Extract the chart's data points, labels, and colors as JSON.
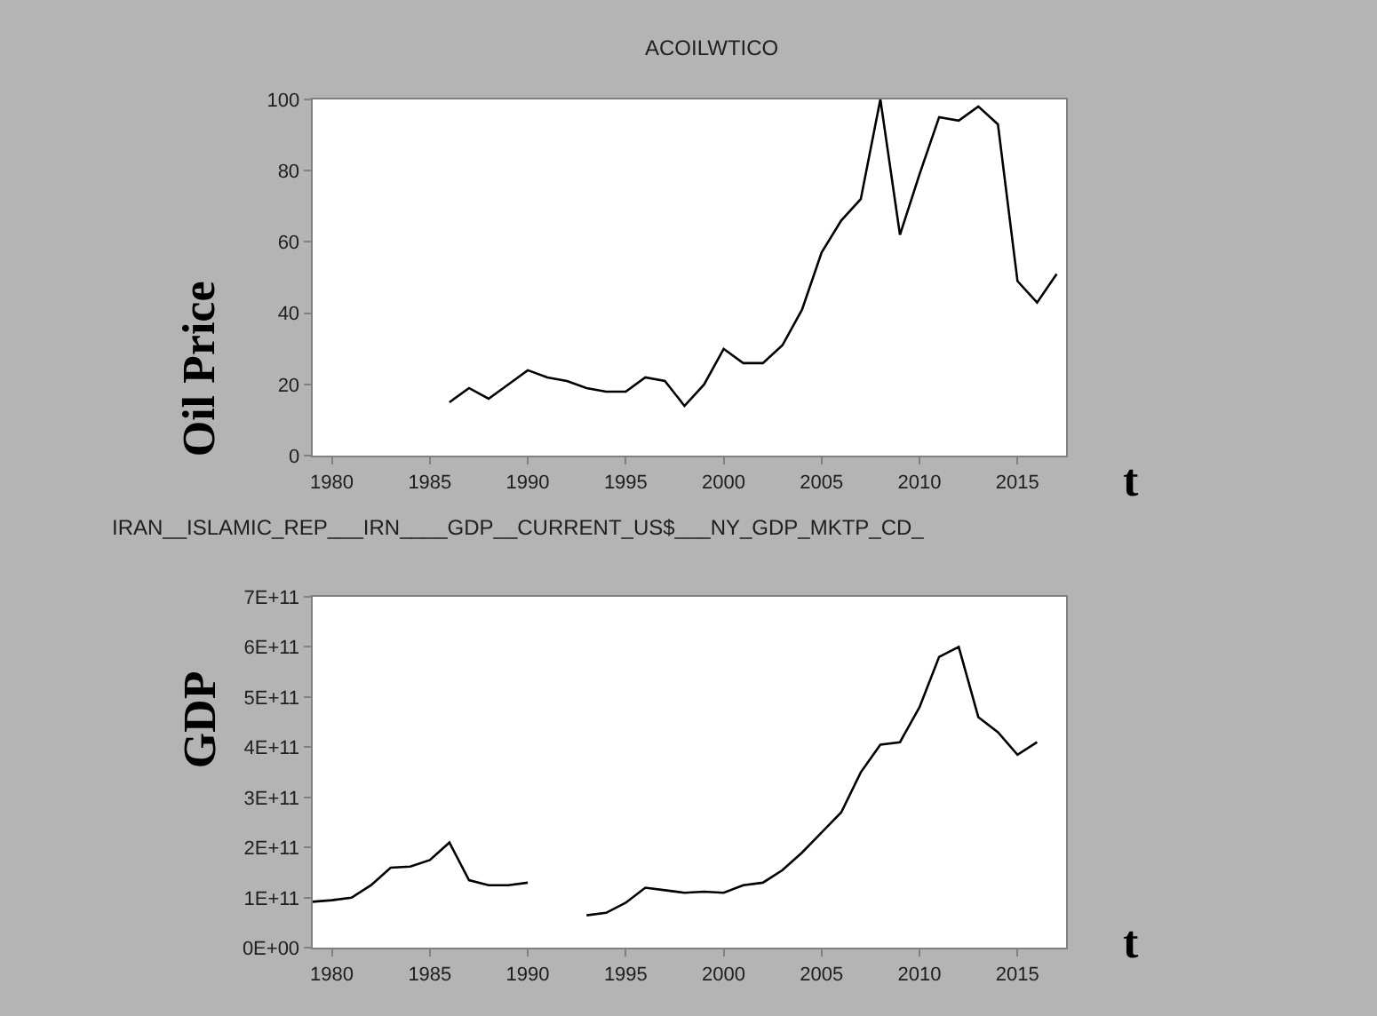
{
  "chart_data": [
    {
      "type": "line",
      "title": "ACOILWTICO",
      "xlabel": "t",
      "ylabel": "Oil Price",
      "color": "#000000",
      "x": [
        1986,
        1987,
        1988,
        1989,
        1990,
        1991,
        1992,
        1993,
        1994,
        1995,
        1996,
        1997,
        1998,
        1999,
        2000,
        2001,
        2002,
        2003,
        2004,
        2005,
        2006,
        2007,
        2008,
        2009,
        2010,
        2011,
        2012,
        2013,
        2014,
        2015,
        2016,
        2017
      ],
      "values": [
        15,
        19,
        16,
        20,
        24,
        22,
        21,
        19,
        18,
        18,
        22,
        21,
        14,
        20,
        30,
        26,
        26,
        31,
        41,
        57,
        66,
        72,
        100,
        62,
        79,
        95,
        94,
        98,
        93,
        49,
        43,
        51
      ],
      "xlim": [
        1979,
        2017.5
      ],
      "xticks": [
        1980,
        1985,
        1990,
        1995,
        2000,
        2005,
        2010,
        2015
      ],
      "ylim": [
        0,
        100
      ],
      "yticks": [
        0,
        20,
        40,
        60,
        80,
        100
      ]
    },
    {
      "type": "line",
      "title": "IRAN__ISLAMIC_REP___IRN____GDP__CURRENT_US$___NY_GDP_MKTP_CD_",
      "xlabel": "t",
      "ylabel": "GDP",
      "color": "#000000",
      "x": [
        1979,
        1980,
        1981,
        1982,
        1983,
        1984,
        1985,
        1986,
        1987,
        1988,
        1989,
        1990,
        1991,
        1992,
        1993,
        1994,
        1995,
        1996,
        1997,
        1998,
        1999,
        2000,
        2001,
        2002,
        2003,
        2004,
        2005,
        2006,
        2007,
        2008,
        2009,
        2010,
        2011,
        2012,
        2013,
        2014,
        2015,
        2016
      ],
      "values": [
        92000000000.0,
        95000000000.0,
        100000000000.0,
        125000000000.0,
        160000000000.0,
        162000000000.0,
        175000000000.0,
        210000000000.0,
        135000000000.0,
        125000000000.0,
        125000000000.0,
        130000000000.0,
        null,
        null,
        65000000000.0,
        70000000000.0,
        90000000000.0,
        120000000000.0,
        115000000000.0,
        110000000000.0,
        112000000000.0,
        110000000000.0,
        125000000000.0,
        130000000000.0,
        155000000000.0,
        190000000000.0,
        230000000000.0,
        270000000000.0,
        350000000000.0,
        405000000000.0,
        410000000000.0,
        480000000000.0,
        580000000000.0,
        600000000000.0,
        460000000000.0,
        430000000000.0,
        385000000000.0,
        410000000000.0
      ],
      "xlim": [
        1979,
        2017.5
      ],
      "xticks": [
        1980,
        1985,
        1990,
        1995,
        2000,
        2005,
        2010,
        2015
      ],
      "ylim": [
        0,
        700000000000.0
      ],
      "yticks": [
        {
          "value": 0,
          "label": "0E+00"
        },
        {
          "value": 100000000000.0,
          "label": "1E+11"
        },
        {
          "value": 200000000000.0,
          "label": "2E+11"
        },
        {
          "value": 300000000000.0,
          "label": "3E+11"
        },
        {
          "value": 400000000000.0,
          "label": "4E+11"
        },
        {
          "value": 500000000000.0,
          "label": "5E+11"
        },
        {
          "value": 600000000000.0,
          "label": "6E+11"
        },
        {
          "value": 700000000000.0,
          "label": "7E+11"
        }
      ]
    }
  ]
}
